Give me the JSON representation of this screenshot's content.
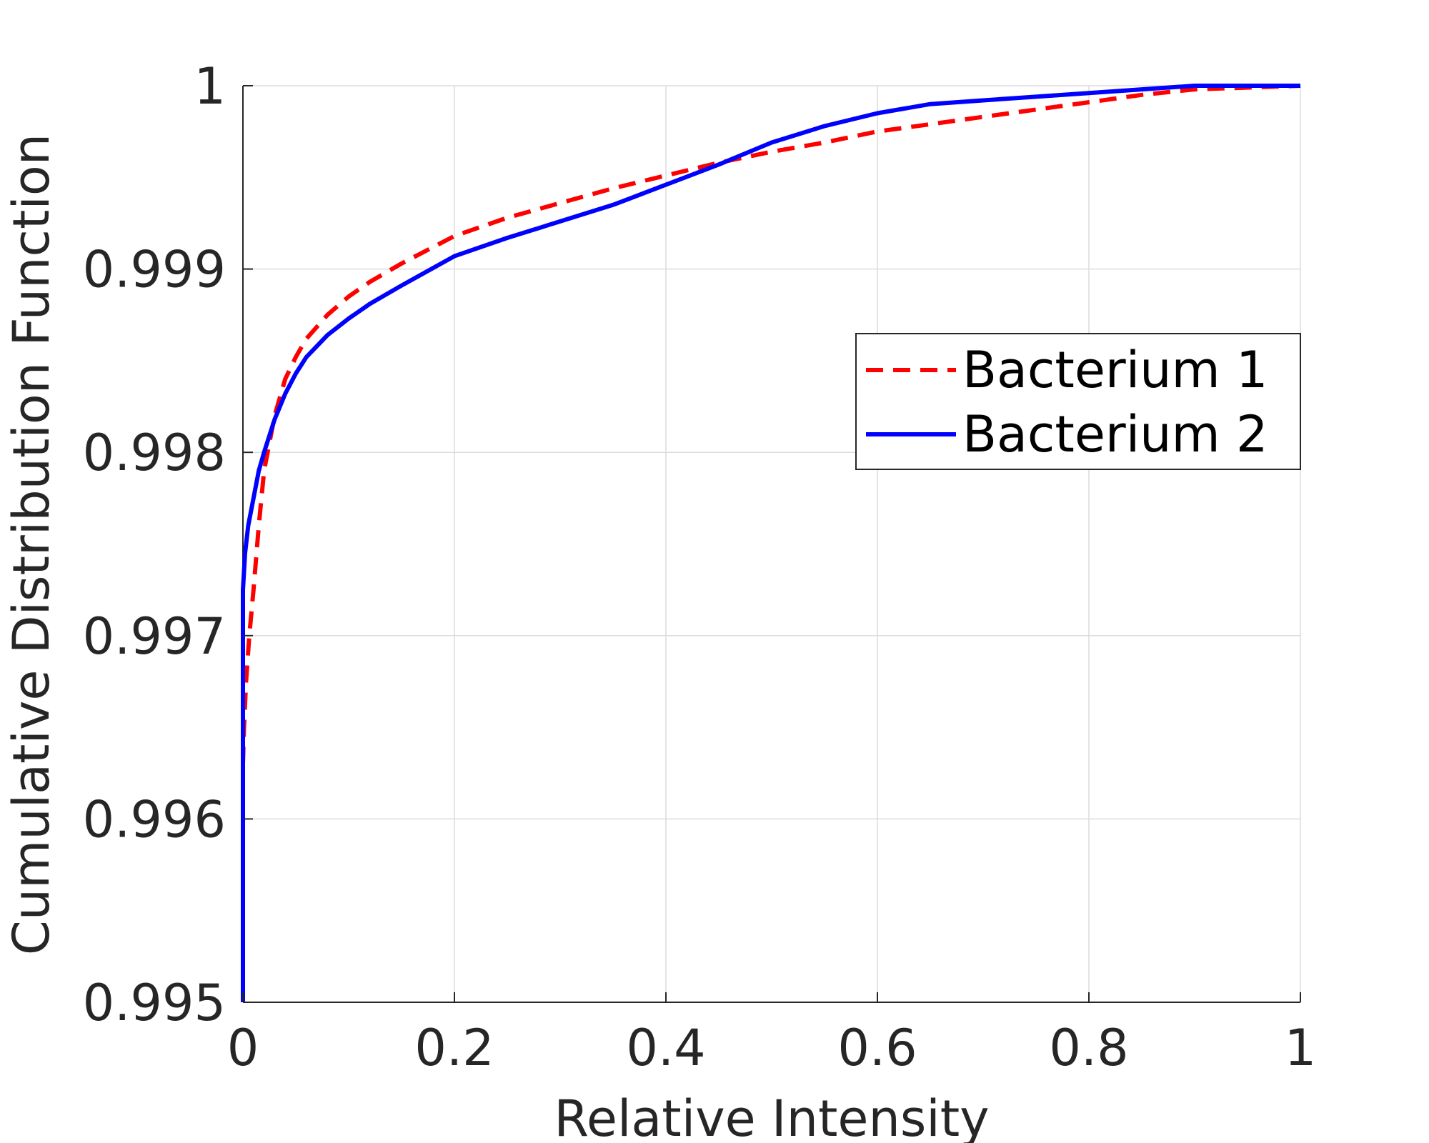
{
  "chart_data": {
    "type": "line",
    "xlabel": "Relative Intensity",
    "ylabel": "Cumulative Distribution Function",
    "xlim": [
      0,
      1
    ],
    "ylim": [
      0.995,
      1
    ],
    "x_ticks": [
      "0",
      "0.2",
      "0.4",
      "0.6",
      "0.8",
      "1"
    ],
    "x_tick_values": [
      0,
      0.2,
      0.4,
      0.6,
      0.8,
      1
    ],
    "y_ticks": [
      "0.995",
      "0.996",
      "0.997",
      "0.998",
      "0.999",
      "1"
    ],
    "y_tick_values": [
      0.995,
      0.996,
      0.997,
      0.998,
      0.999,
      1
    ],
    "grid": true,
    "legend_position": "right",
    "series": [
      {
        "name": "Bacterium 1",
        "color": "#ff0000",
        "style": "dashed",
        "x": [
          0,
          0.001,
          0.003,
          0.006,
          0.01,
          0.015,
          0.02,
          0.03,
          0.04,
          0.05,
          0.06,
          0.08,
          0.1,
          0.12,
          0.15,
          0.2,
          0.25,
          0.3,
          0.35,
          0.4,
          0.45,
          0.5,
          0.55,
          0.6,
          0.65,
          0.7,
          0.75,
          0.8,
          0.85,
          0.9,
          0.95,
          1
        ],
        "y": [
          0.9963,
          0.9965,
          0.99675,
          0.997,
          0.99725,
          0.9976,
          0.9979,
          0.9982,
          0.9984,
          0.99852,
          0.99862,
          0.99875,
          0.99885,
          0.99893,
          0.99903,
          0.99918,
          0.99928,
          0.99936,
          0.99944,
          0.99951,
          0.99958,
          0.99964,
          0.99969,
          0.99975,
          0.99979,
          0.99983,
          0.99987,
          0.99991,
          0.99995,
          0.99998,
          0.99999,
          1.0
        ]
      },
      {
        "name": "Bacterium 2",
        "color": "#0000ff",
        "style": "solid",
        "x": [
          0,
          0,
          0.002,
          0.005,
          0.01,
          0.015,
          0.02,
          0.03,
          0.04,
          0.05,
          0.06,
          0.08,
          0.1,
          0.12,
          0.15,
          0.2,
          0.25,
          0.3,
          0.35,
          0.4,
          0.45,
          0.5,
          0.55,
          0.6,
          0.65,
          0.7,
          0.75,
          0.8,
          0.85,
          0.9,
          0.95,
          1
        ],
        "y": [
          0.995,
          0.99725,
          0.99745,
          0.9976,
          0.99775,
          0.9979,
          0.998,
          0.99818,
          0.99832,
          0.99843,
          0.99852,
          0.99864,
          0.99873,
          0.99881,
          0.99891,
          0.99907,
          0.99917,
          0.99926,
          0.99935,
          0.99946,
          0.99957,
          0.99969,
          0.99978,
          0.99985,
          0.9999,
          0.99992,
          0.99994,
          0.99996,
          0.99998,
          1.0,
          1.0,
          1.0
        ]
      }
    ]
  }
}
